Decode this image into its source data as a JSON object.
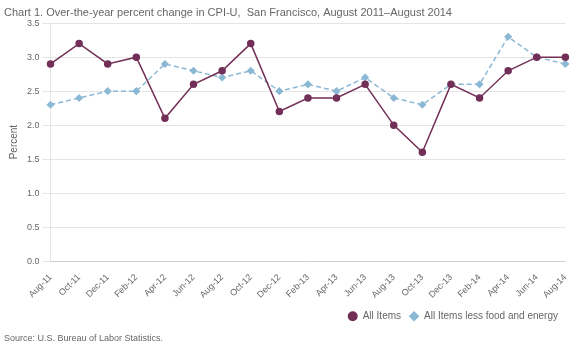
{
  "chart_data": {
    "type": "line",
    "title": "Chart 1. Over-the-year percent change in CPI-U,  San Francisco, August 2011–August 2014",
    "y_label": "Percent",
    "annotations": [
      "Source: U.S. Bureau of Labor Statistics."
    ],
    "categories": [
      "Aug-11",
      "Oct-11",
      "Dec-11",
      "Feb-12",
      "Apr-12",
      "Jun-12",
      "Aug-12",
      "Oct-12",
      "Dec-12",
      "Feb-13",
      "Apr-13",
      "Jun-13",
      "Aug-13",
      "Oct-13",
      "Dec-13",
      "Feb-14",
      "Apr-14",
      "Jun-14",
      "Aug-14"
    ],
    "series": [
      {
        "name": "All Items",
        "color": "#722F57",
        "marker": "circle",
        "line_style": "solid",
        "values": [
          2.9,
          3.2,
          2.9,
          3.0,
          2.1,
          2.6,
          2.8,
          3.2,
          2.2,
          2.4,
          2.4,
          2.6,
          2.0,
          1.6,
          2.6,
          2.4,
          2.8,
          3.0,
          3.0
        ]
      },
      {
        "name": "All Items less food and energy",
        "color": "#8BB8D4",
        "marker": "diamond",
        "line_style": "dashed",
        "values": [
          2.3,
          2.4,
          2.5,
          2.5,
          2.9,
          2.8,
          2.7,
          2.8,
          2.5,
          2.6,
          2.5,
          2.7,
          2.4,
          2.3,
          2.6,
          2.6,
          3.3,
          3.0,
          2.9
        ]
      }
    ],
    "ylim": [
      0.0,
      3.5
    ],
    "yticks": [
      {
        "value": 0,
        "label": "0.0"
      },
      0.5,
      {
        "value": 1,
        "label": "1.0"
      },
      1.5,
      {
        "value": 2,
        "label": "2.0"
      },
      2.5,
      {
        "value": 3,
        "label": "3.0"
      },
      3.5
    ],
    "grid": "y",
    "legend": "lower right"
  }
}
